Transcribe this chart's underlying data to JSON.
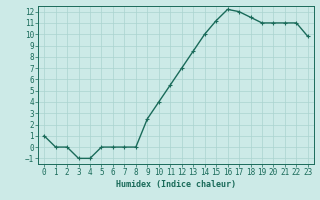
{
  "x": [
    0,
    1,
    2,
    3,
    4,
    5,
    6,
    7,
    8,
    9,
    10,
    11,
    12,
    13,
    14,
    15,
    16,
    17,
    18,
    19,
    20,
    21,
    22,
    23
  ],
  "y": [
    1,
    0,
    0,
    -1,
    -1,
    0,
    0,
    0,
    0,
    2.5,
    4,
    5.5,
    7,
    8.5,
    10,
    11.2,
    12.2,
    12,
    11.5,
    11,
    11,
    11,
    11,
    9.8
  ],
  "line_color": "#1a6b5a",
  "marker": "+",
  "marker_size": 3,
  "background_color": "#cceae7",
  "grid_color": "#aad4cf",
  "xlabel": "Humidex (Indice chaleur)",
  "ylabel": "",
  "xlim": [
    -0.5,
    23.5
  ],
  "ylim": [
    -1.5,
    12.5
  ],
  "yticks": [
    -1,
    0,
    1,
    2,
    3,
    4,
    5,
    6,
    7,
    8,
    9,
    10,
    11,
    12
  ],
  "xticks": [
    0,
    1,
    2,
    3,
    4,
    5,
    6,
    7,
    8,
    9,
    10,
    11,
    12,
    13,
    14,
    15,
    16,
    17,
    18,
    19,
    20,
    21,
    22,
    23
  ],
  "tick_color": "#1a6b5a",
  "spine_color": "#1a6b5a",
  "xlabel_fontsize": 6,
  "tick_fontsize": 5.5,
  "linewidth": 1.0
}
